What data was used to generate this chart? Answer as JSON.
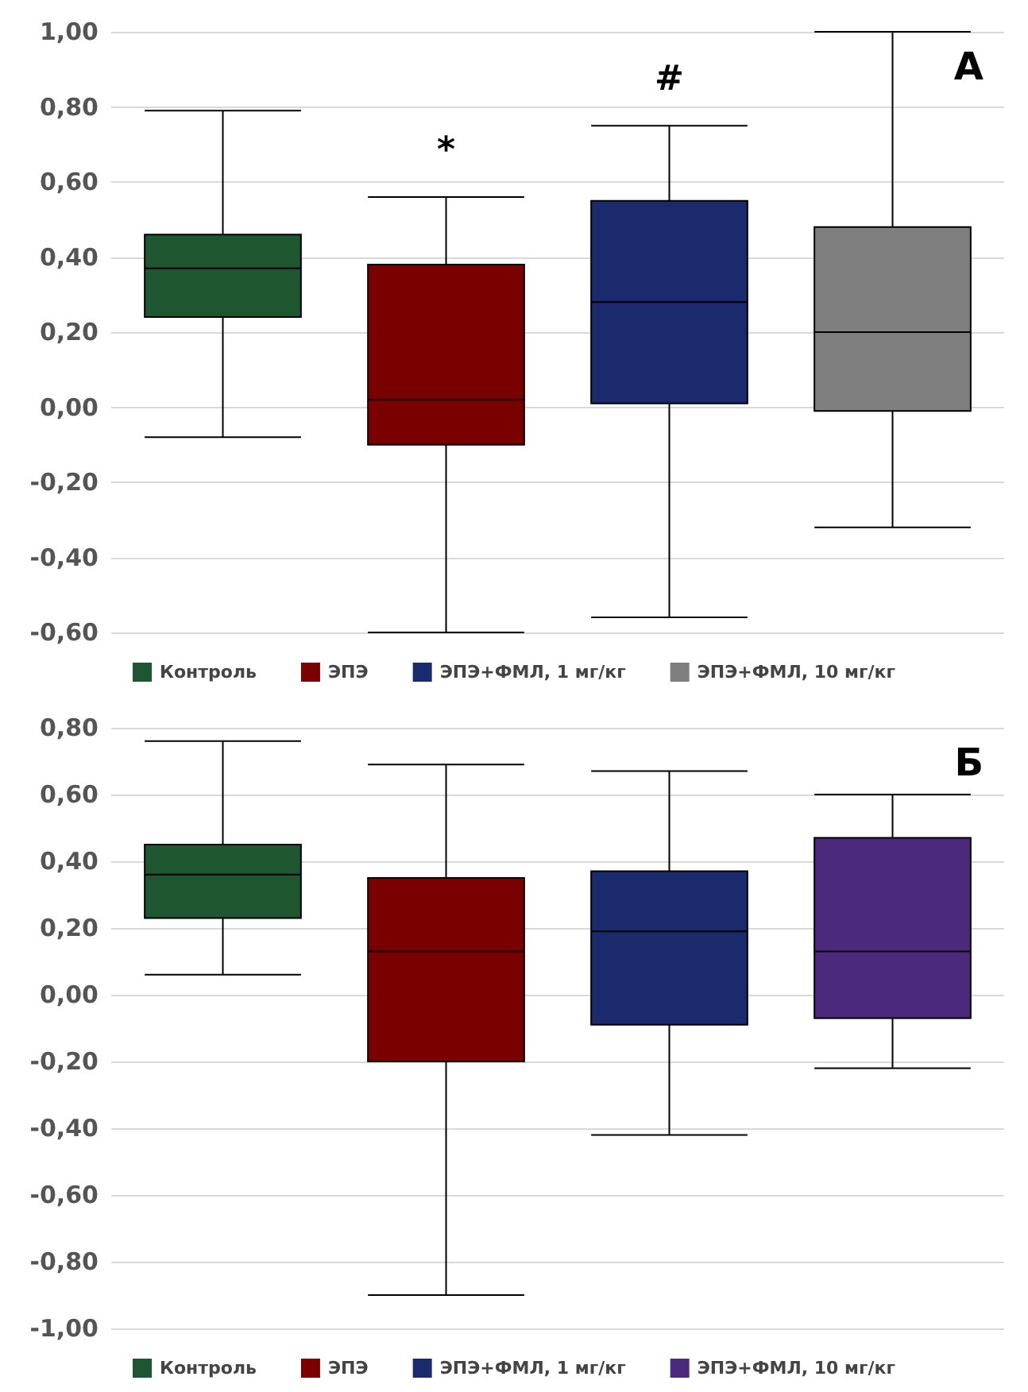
{
  "chart_data": [
    {
      "type": "box",
      "categories": [
        null,
        null,
        null,
        null
      ],
      "series": [
        {
          "name": "Контроль",
          "color": "#1e5631",
          "boxes": [
            {
              "low": -0.08,
              "q1": 0.24,
              "median": 0.37,
              "q3": 0.46,
              "high": 0.79
            },
            null,
            null,
            null
          ]
        },
        {
          "name": "ЭПЭ",
          "color": "#7a0000",
          "boxes": [
            null,
            {
              "low": -0.6,
              "q1": -0.1,
              "median": 0.02,
              "q3": 0.38,
              "high": 0.56
            },
            null,
            null
          ]
        },
        {
          "name": "ЭПЭ+ФМЛ, 1 мг/кг",
          "color": "#1a2a6c",
          "boxes": [
            null,
            null,
            {
              "low": -0.56,
              "q1": 0.01,
              "median": 0.28,
              "q3": 0.55,
              "high": 0.75
            },
            null
          ]
        },
        {
          "name": "ЭПЭ+ФМЛ, 10 мг/кг",
          "color": "#7f7f7f",
          "boxes": [
            null,
            null,
            null,
            {
              "low": -0.32,
              "q1": -0.01,
              "median": 0.2,
              "q3": 0.48,
              "high": 1.0
            }
          ]
        }
      ],
      "ylim": [
        -0.6,
        1.0
      ],
      "yticks": [
        {
          "value": -0.6,
          "label": "-0,60"
        },
        {
          "value": -0.4,
          "label": "-0,40"
        },
        {
          "value": -0.2,
          "label": "-0,20"
        },
        {
          "value": 0,
          "label": "0,00"
        },
        {
          "value": 0.2,
          "label": "0,20"
        },
        {
          "value": 0.4,
          "label": "0,40"
        },
        {
          "value": 0.6,
          "label": "0,60"
        },
        {
          "value": 0.8,
          "label": "0,80"
        },
        {
          "value": 1.0,
          "label": "1,00"
        }
      ],
      "annotations": [
        "А",
        "*",
        "#"
      ],
      "grid": "y",
      "legend": "bottom",
      "tick_labels": "y"
    },
    {
      "type": "box",
      "categories": [
        null,
        null,
        null,
        null
      ],
      "series": [
        {
          "name": "Контроль",
          "color": "#1e5631",
          "boxes": [
            {
              "low": 0.06,
              "q1": 0.23,
              "median": 0.36,
              "q3": 0.45,
              "high": 0.76
            },
            null,
            null,
            null
          ]
        },
        {
          "name": "ЭПЭ",
          "color": "#7a0000",
          "boxes": [
            null,
            {
              "low": -0.9,
              "q1": -0.2,
              "median": 0.13,
              "q3": 0.35,
              "high": 0.69
            },
            null,
            null
          ]
        },
        {
          "name": "ЭПЭ+ФМЛ, 1 мг/кг",
          "color": "#1a2a6c",
          "boxes": [
            null,
            null,
            {
              "low": -0.42,
              "q1": -0.09,
              "median": 0.19,
              "q3": 0.37,
              "high": 0.67
            },
            null
          ]
        },
        {
          "name": "ЭПЭ+ФМЛ, 10 мг/кг",
          "color": "#4b2a7e",
          "boxes": [
            null,
            null,
            null,
            {
              "low": -0.22,
              "q1": -0.07,
              "median": 0.13,
              "q3": 0.47,
              "high": 0.6
            }
          ]
        }
      ],
      "ylim": [
        -1.0,
        0.8
      ],
      "yticks": [
        {
          "value": -1.0,
          "label": "-1,00"
        },
        {
          "value": -0.8,
          "label": "-0,80"
        },
        {
          "value": -0.6,
          "label": "-0,60"
        },
        {
          "value": -0.4,
          "label": "-0,40"
        },
        {
          "value": -0.2,
          "label": "-0,20"
        },
        {
          "value": 0,
          "label": "0,00"
        },
        {
          "value": 0.2,
          "label": "0,20"
        },
        {
          "value": 0.4,
          "label": "0,40"
        },
        {
          "value": 0.6,
          "label": "0,60"
        },
        {
          "value": 0.8,
          "label": "0,80"
        }
      ],
      "annotations": [
        "Б"
      ],
      "grid": "y",
      "legend": "bottom",
      "tick_labels": "y"
    }
  ]
}
